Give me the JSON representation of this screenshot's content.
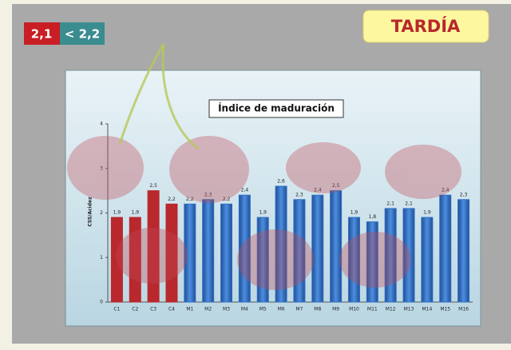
{
  "header": {
    "badges": [
      "2,1",
      "< 2,2"
    ],
    "label": "TARDÍA"
  },
  "chart_data": {
    "type": "bar",
    "title": "Índice de maduración",
    "y_label": "CSS/Acidez",
    "categories": [
      "C1",
      "C2",
      "C3",
      "C4",
      "M1",
      "M2",
      "M3",
      "M4",
      "M5",
      "M6",
      "M7",
      "M8",
      "M9",
      "M10",
      "M11",
      "M12",
      "M13",
      "M14",
      "M15",
      "M16"
    ],
    "values": [
      1.9,
      1.9,
      2.5,
      2.2,
      2.2,
      2.3,
      2.2,
      2.4,
      1.9,
      2.6,
      2.3,
      2.4,
      2.5,
      1.9,
      1.8,
      2.1,
      2.1,
      1.9,
      2.4,
      2.3
    ],
    "value_labels": [
      "1,9",
      "1,9",
      "2,5",
      "2,2",
      "2,2",
      "2,3",
      "2,2",
      "2,4",
      "1,9",
      "2,6",
      "2,3",
      "2,4",
      "2,5",
      "1,9",
      "1,8",
      "2,1",
      "2,1",
      "1,9",
      "2,4",
      "2,3"
    ],
    "colors": [
      "#b8282d",
      "#b8282d",
      "#b8282d",
      "#b8282d",
      "#2f6fc4",
      "#2f6fc4",
      "#2f6fc4",
      "#2f6fc4",
      "#2f6fc4",
      "#2f6fc4",
      "#2f6fc4",
      "#2f6fc4",
      "#2f6fc4",
      "#2f6fc4",
      "#2f6fc4",
      "#2f6fc4",
      "#2f6fc4",
      "#2f6fc4",
      "#2f6fc4",
      "#2f6fc4"
    ],
    "ylim": [
      0,
      4
    ],
    "yticks": [
      0,
      1,
      2,
      3,
      4
    ]
  }
}
